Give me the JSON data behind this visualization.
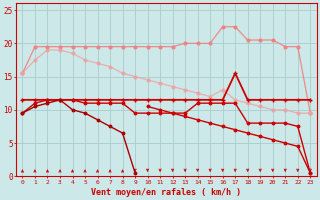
{
  "x": [
    0,
    1,
    2,
    3,
    4,
    5,
    6,
    7,
    8,
    9,
    10,
    11,
    12,
    13,
    14,
    15,
    16,
    17,
    18,
    19,
    20,
    21,
    22,
    23
  ],
  "line_rafales_main": [
    15.5,
    19.5,
    19.5,
    19.5,
    19.5,
    19.5,
    19.5,
    19.5,
    19.5,
    19.5,
    19.5,
    19.5,
    19.5,
    20.0,
    20.0,
    20.0,
    22.5,
    22.5,
    20.5,
    20.5,
    20.5,
    19.5,
    19.5,
    9.5
  ],
  "line_rafales_diag": [
    15.5,
    17.5,
    19.0,
    19.0,
    18.5,
    17.5,
    17.0,
    16.5,
    15.5,
    15.0,
    14.5,
    14.0,
    13.5,
    13.0,
    12.5,
    12.0,
    13.0,
    11.5,
    11.0,
    10.5,
    10.0,
    10.0,
    9.5,
    9.5
  ],
  "line_flat": [
    11.5,
    11.5,
    11.5,
    11.5,
    11.5,
    11.5,
    11.5,
    11.5,
    11.5,
    11.5,
    11.5,
    11.5,
    11.5,
    11.5,
    11.5,
    11.5,
    11.5,
    15.5,
    11.5,
    11.5,
    11.5,
    11.5,
    11.5,
    11.5
  ],
  "line_mid": [
    9.5,
    11.0,
    11.5,
    11.5,
    11.5,
    11.0,
    11.0,
    11.0,
    11.0,
    9.5,
    9.5,
    9.5,
    9.5,
    9.5,
    11.0,
    11.0,
    11.0,
    11.0,
    8.0,
    8.0,
    8.0,
    8.0,
    7.5,
    0.5
  ],
  "line_steep": [
    9.5,
    10.5,
    11.0,
    11.5,
    10.0,
    9.5,
    8.5,
    7.5,
    6.5,
    0.5,
    null,
    null,
    null,
    null,
    null,
    null,
    null,
    null,
    null,
    null,
    null,
    null,
    null,
    null
  ],
  "line_diag_down": [
    null,
    null,
    null,
    null,
    null,
    null,
    null,
    null,
    null,
    null,
    10.5,
    10.0,
    9.5,
    9.0,
    8.5,
    8.0,
    7.5,
    7.0,
    6.5,
    6.0,
    5.5,
    5.0,
    4.5,
    0.5
  ],
  "color_pink_main": "#f08080",
  "color_pink_diag": "#f0a0a0",
  "color_dark_flat": "#cc0000",
  "color_dark_mid": "#cc0000",
  "color_dark_steep": "#aa0000",
  "color_dark_down": "#cc0000",
  "bg_color": "#cce8e8",
  "grid_color": "#aacccc",
  "xlabel": "Vent moyen/en rafales ( km/h )",
  "ylim": [
    0,
    26
  ],
  "xlim": [
    -0.5,
    23.5
  ],
  "yticks": [
    0,
    5,
    10,
    15,
    20,
    25
  ],
  "xticks": [
    0,
    1,
    2,
    3,
    4,
    5,
    6,
    7,
    8,
    9,
    10,
    11,
    12,
    13,
    14,
    15,
    16,
    17,
    18,
    19,
    20,
    21,
    22,
    23
  ]
}
